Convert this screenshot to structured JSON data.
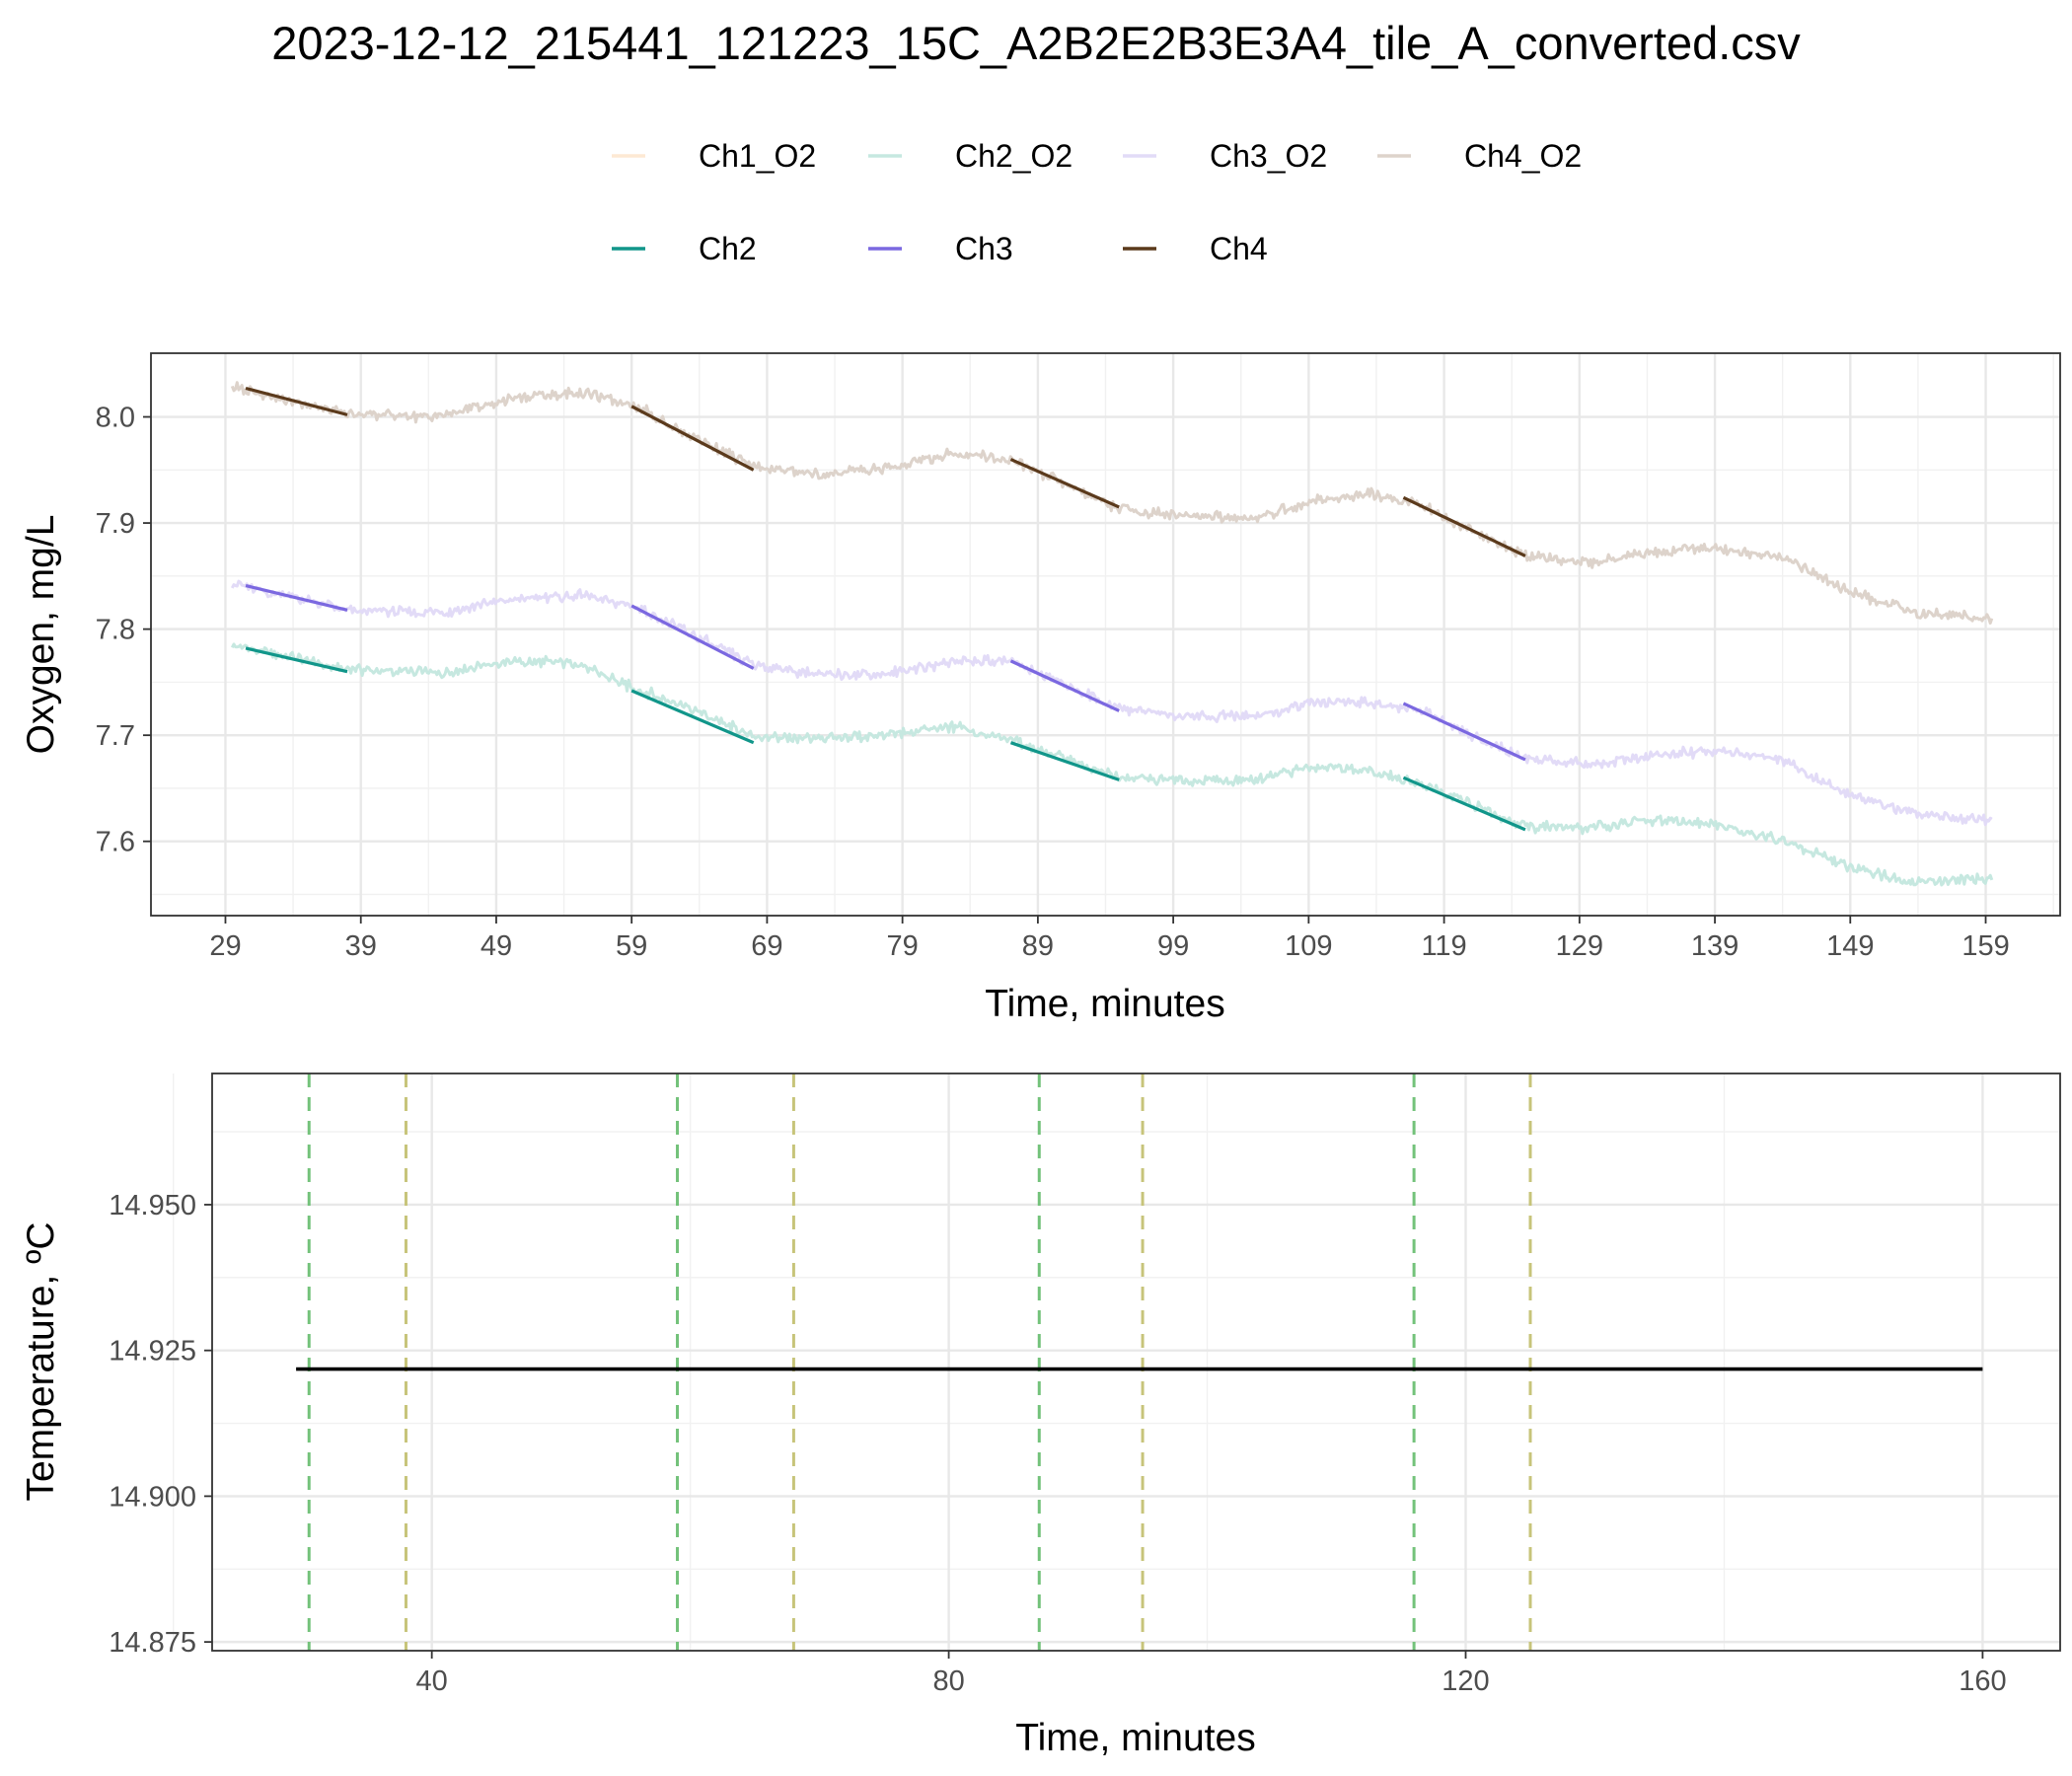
{
  "title": "2023-12-12_215441_121223_15C_A2B2E2B3E3A4_tile_A_converted.csv",
  "legend": {
    "raw": [
      {
        "label": "Ch1_O2",
        "color": "#fde9d3"
      },
      {
        "label": "Ch2_O2",
        "color": "#c6e8e0"
      },
      {
        "label": "Ch3_O2",
        "color": "#e2dbf7"
      },
      {
        "label": "Ch4_O2",
        "color": "#ddd3cb"
      }
    ],
    "fits": [
      {
        "label": "Ch2",
        "color": "#11968a"
      },
      {
        "label": "Ch3",
        "color": "#7b68e0"
      },
      {
        "label": "Ch4",
        "color": "#5b3a1c"
      }
    ]
  },
  "chart_data": [
    {
      "type": "line",
      "name": "oxygen",
      "xlabel": "Time, minutes",
      "ylabel": "Oxygen, mg/L",
      "xlim": [
        23.5,
        164.5
      ],
      "ylim": [
        7.53,
        8.06
      ],
      "x_ticks": [
        29,
        39,
        49,
        59,
        69,
        79,
        89,
        99,
        109,
        119,
        129,
        139,
        149,
        159
      ],
      "y_ticks": [
        7.6,
        7.7,
        7.8,
        7.9,
        8.0
      ],
      "y_tick_labels": [
        "7.6",
        "7.7",
        "7.8",
        "7.9",
        "8.0"
      ],
      "grid": true,
      "series": [
        {
          "name": "Ch2_O2",
          "color": "#c6e8e0",
          "noise": 0.006,
          "x": [
            29.5,
            38,
            45,
            50,
            55,
            59,
            63,
            68,
            73,
            78,
            83,
            87,
            91,
            95,
            100,
            105,
            109,
            113,
            117,
            121,
            125,
            130,
            134,
            139,
            144,
            149,
            154,
            159.5
          ],
          "y": [
            7.785,
            7.762,
            7.758,
            7.77,
            7.768,
            7.745,
            7.728,
            7.698,
            7.697,
            7.7,
            7.708,
            7.695,
            7.678,
            7.66,
            7.657,
            7.659,
            7.67,
            7.667,
            7.655,
            7.635,
            7.614,
            7.613,
            7.62,
            7.617,
            7.6,
            7.576,
            7.561,
            7.565
          ]
        },
        {
          "name": "Ch3_O2",
          "color": "#e2dbf7",
          "noise": 0.006,
          "x": [
            29.5,
            38,
            45,
            50,
            55,
            59,
            63,
            68,
            73,
            78,
            83,
            87,
            91,
            95,
            100,
            105,
            109,
            113,
            117,
            121,
            125,
            130,
            134,
            139,
            144,
            149,
            154,
            159.5
          ],
          "y": [
            7.843,
            7.818,
            7.815,
            7.828,
            7.832,
            7.822,
            7.798,
            7.766,
            7.757,
            7.758,
            7.77,
            7.77,
            7.748,
            7.725,
            7.718,
            7.717,
            7.73,
            7.732,
            7.725,
            7.7,
            7.678,
            7.672,
            7.68,
            7.686,
            7.676,
            7.644,
            7.625,
            7.62
          ]
        },
        {
          "name": "Ch4_O2",
          "color": "#ddd3cb",
          "noise": 0.006,
          "x": [
            29.5,
            38,
            45,
            50,
            55,
            59,
            63,
            68,
            73,
            78,
            83,
            87,
            91,
            95,
            100,
            105,
            109,
            113,
            117,
            121,
            125,
            130,
            134,
            139,
            144,
            149,
            154,
            159.5
          ],
          "y": [
            8.028,
            8.003,
            8.0,
            8.017,
            8.023,
            8.013,
            7.985,
            7.953,
            7.946,
            7.952,
            7.966,
            7.96,
            7.937,
            7.913,
            7.906,
            7.905,
            7.92,
            7.928,
            7.92,
            7.893,
            7.868,
            7.862,
            7.873,
            7.876,
            7.868,
            7.835,
            7.815,
            7.81
          ]
        }
      ],
      "fits": [
        {
          "name": "Ch2",
          "color": "#11968a",
          "segments": [
            {
              "x": [
                30.5,
                38
              ],
              "y": [
                7.782,
                7.76
              ]
            },
            {
              "x": [
                59,
                68
              ],
              "y": [
                7.742,
                7.693
              ]
            },
            {
              "x": [
                87,
                95
              ],
              "y": [
                7.693,
                7.658
              ]
            },
            {
              "x": [
                116,
                125
              ],
              "y": [
                7.66,
                7.611
              ]
            }
          ]
        },
        {
          "name": "Ch3",
          "color": "#7b68e0",
          "segments": [
            {
              "x": [
                30.5,
                38
              ],
              "y": [
                7.841,
                7.818
              ]
            },
            {
              "x": [
                59,
                68
              ],
              "y": [
                7.822,
                7.763
              ]
            },
            {
              "x": [
                87,
                95
              ],
              "y": [
                7.77,
                7.723
              ]
            },
            {
              "x": [
                116,
                125
              ],
              "y": [
                7.73,
                7.677
              ]
            }
          ]
        },
        {
          "name": "Ch4",
          "color": "#5b3a1c",
          "segments": [
            {
              "x": [
                30.5,
                38
              ],
              "y": [
                8.027,
                8.002
              ]
            },
            {
              "x": [
                59,
                68
              ],
              "y": [
                8.01,
                7.95
              ]
            },
            {
              "x": [
                87,
                95
              ],
              "y": [
                7.96,
                7.915
              ]
            },
            {
              "x": [
                116,
                125
              ],
              "y": [
                7.924,
                7.869
              ]
            }
          ]
        }
      ]
    },
    {
      "type": "line",
      "name": "temperature",
      "xlabel": "Time, minutes",
      "ylabel": "Temperature, ºC",
      "xlim": [
        23,
        166
      ],
      "ylim": [
        14.8735,
        14.9725
      ],
      "x_ticks": [
        40,
        80,
        120,
        160
      ],
      "y_ticks": [
        14.875,
        14.9,
        14.925,
        14.95
      ],
      "y_tick_labels": [
        "14.875",
        "14.900",
        "14.925",
        "14.950"
      ],
      "grid": true,
      "series": [
        {
          "color": "#000000",
          "x": [
            29.5,
            160
          ],
          "y": [
            14.9218,
            14.9218
          ]
        }
      ],
      "vlines": [
        {
          "x": 30.5,
          "color": "#73c27a"
        },
        {
          "x": 38,
          "color": "#c7c47a"
        },
        {
          "x": 59,
          "color": "#73c27a"
        },
        {
          "x": 68,
          "color": "#c7c47a"
        },
        {
          "x": 87,
          "color": "#73c27a"
        },
        {
          "x": 95,
          "color": "#c7c47a"
        },
        {
          "x": 116,
          "color": "#73c27a"
        },
        {
          "x": 125,
          "color": "#c7c47a"
        }
      ]
    }
  ]
}
